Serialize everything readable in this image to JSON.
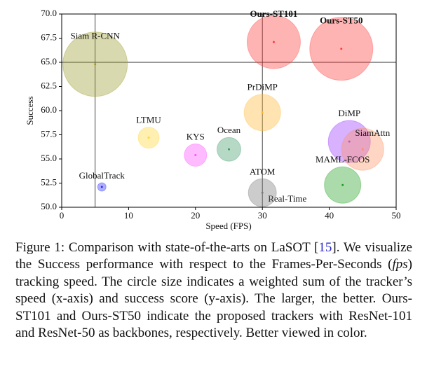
{
  "chart_data": {
    "type": "scatter",
    "xlabel": "Speed (FPS)",
    "ylabel": "Success",
    "xlim": [
      0,
      50
    ],
    "xticks": [
      0,
      10,
      20,
      30,
      40,
      50
    ],
    "ylim": [
      50,
      70
    ],
    "yticks": [
      {
        "value": 50,
        "label": "50.0"
      },
      52.5,
      {
        "value": 55,
        "label": "55.0"
      },
      57.5,
      {
        "value": 60,
        "label": "60.0"
      },
      62.5,
      {
        "value": 65,
        "label": "65.0"
      },
      67.5,
      {
        "value": 70,
        "label": "70.0"
      }
    ],
    "hlines": [
      65
    ],
    "vlines": [
      5,
      30
    ],
    "annotations": [
      "Real-Time"
    ],
    "series": [
      {
        "name": "Siam R-CNN",
        "color": "#9c9a2c",
        "x": [
          5
        ],
        "values": [
          64.8
        ],
        "sizes": [
          2116
        ]
      },
      {
        "name": "Ours-ST101",
        "color": "#ff3b3b",
        "x": [
          31.7
        ],
        "values": [
          67.1
        ],
        "sizes": [
          1444
        ],
        "font_weight": "bold"
      },
      {
        "name": "Ours-ST50",
        "color": "#ff3b3b",
        "x": [
          41.8
        ],
        "values": [
          66.4
        ],
        "sizes": [
          2025
        ],
        "font_weight": "bold"
      },
      {
        "name": "PrDiMP",
        "color": "#ffb833",
        "x": [
          30
        ],
        "values": [
          59.8
        ],
        "sizes": [
          676
        ]
      },
      {
        "name": "LTMU",
        "color": "#ffd633",
        "x": [
          13
        ],
        "values": [
          57.2
        ],
        "sizes": [
          225
        ]
      },
      {
        "name": "KYS",
        "color": "#ff4dff",
        "x": [
          20
        ],
        "values": [
          55.4
        ],
        "sizes": [
          256
        ]
      },
      {
        "name": "Ocean",
        "color": "#3f9a6a",
        "x": [
          25
        ],
        "values": [
          56
        ],
        "sizes": [
          289
        ]
      },
      {
        "name": "DiMP",
        "color": "#9933ff",
        "x": [
          43
        ],
        "values": [
          56.8
        ],
        "sizes": [
          900
        ]
      },
      {
        "name": "SiamAttn",
        "color": "#ff9060",
        "x": [
          45
        ],
        "values": [
          56
        ],
        "sizes": [
          900
        ]
      },
      {
        "name": "GlobalTrack",
        "color": "#2a2aff",
        "x": [
          6
        ],
        "values": [
          52.1
        ],
        "sizes": [
          36
        ]
      },
      {
        "name": "ATOM",
        "color": "#7a7a7a",
        "x": [
          30
        ],
        "values": [
          51.5
        ],
        "sizes": [
          400
        ]
      },
      {
        "name": "MAML-FCOS",
        "color": "#22a022",
        "x": [
          42
        ],
        "values": [
          52.3
        ],
        "sizes": [
          676
        ]
      }
    ]
  },
  "caption": {
    "parts": [
      "Figure 1: Comparison with state-of-the-arts on LaSOT [",
      "15",
      "]. We visualize the Success performance with respect to the Frames-Per-Seconds (",
      "fps",
      ") tracking speed. The circle size indicates a weighted sum of the tracker’s speed (x-axis) and success score (y-axis). The larger, the better. Ours-ST101 and Ours-ST50 indicate the pro­posed trackers with ResNet-101 and ResNet-50 as backbones, re­spectively. Better viewed in color."
    ]
  }
}
